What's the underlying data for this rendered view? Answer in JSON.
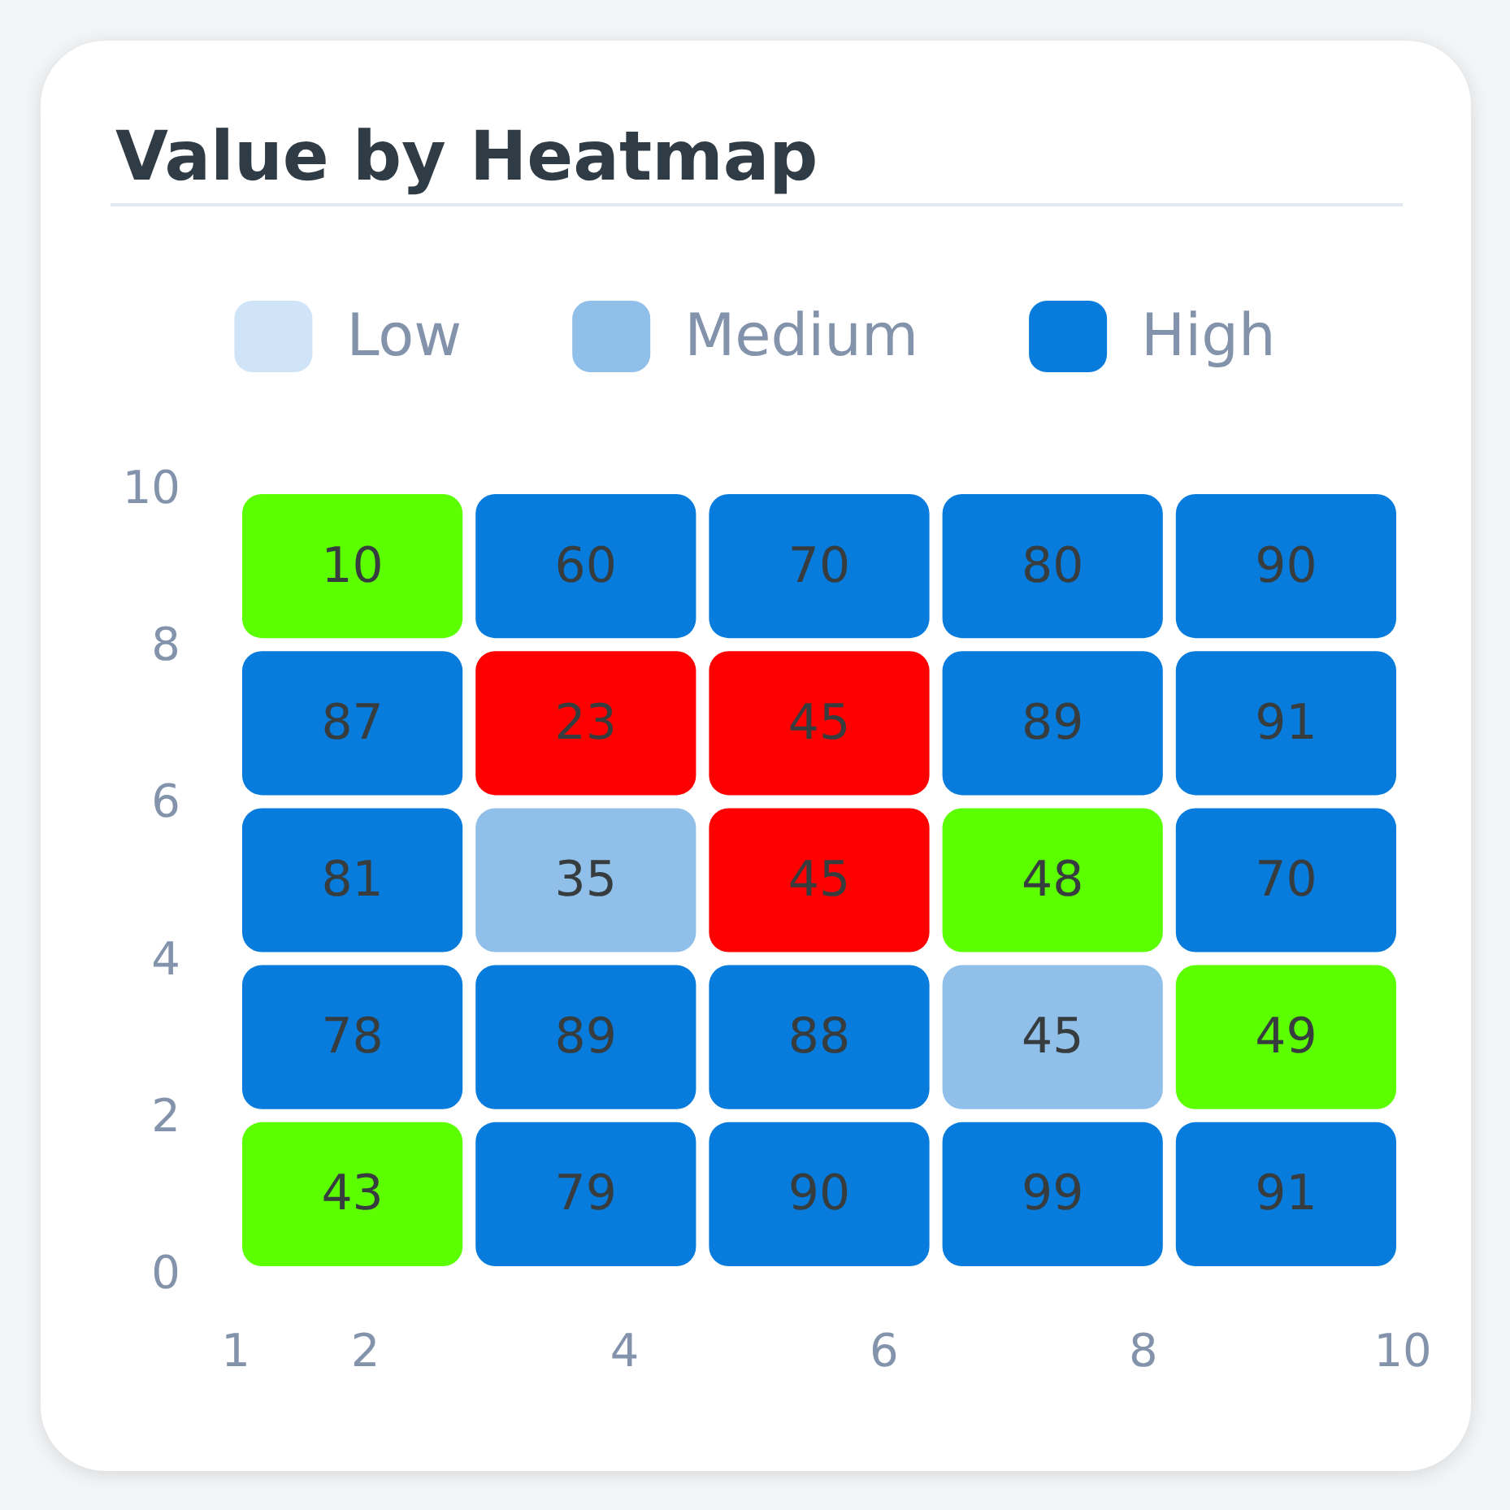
{
  "chart_data": {
    "type": "heatmap",
    "title": "Value by Heatmap",
    "xlim": [
      1,
      10
    ],
    "xticks": [
      1,
      2,
      4,
      6,
      8,
      10
    ],
    "ylim": [
      0,
      10
    ],
    "yticks": [
      0,
      2,
      4,
      6,
      8,
      10
    ],
    "cells": [
      [
        10,
        60,
        70,
        80,
        90
      ],
      [
        87,
        23,
        45,
        89,
        91
      ],
      [
        81,
        35,
        45,
        48,
        70
      ],
      [
        78,
        89,
        88,
        45,
        49
      ],
      [
        43,
        79,
        90,
        99,
        91
      ]
    ],
    "colors": [
      [
        "#5cff00",
        "#077cdc",
        "#077cdc",
        "#077cdc",
        "#077cdc"
      ],
      [
        "#077cdc",
        "#ff0000",
        "#ff0000",
        "#077cdc",
        "#077cdc"
      ],
      [
        "#077cdc",
        "#90c0ea",
        "#ff0000",
        "#5cff00",
        "#077cdc"
      ],
      [
        "#077cdc",
        "#077cdc",
        "#077cdc",
        "#90c0ea",
        "#5cff00"
      ],
      [
        "#5cff00",
        "#077cdc",
        "#077cdc",
        "#077cdc",
        "#077cdc"
      ]
    ],
    "series": [
      {
        "name": "Low",
        "color": "#cfe4f7"
      },
      {
        "name": "Medium",
        "color": "#90c0ea"
      },
      {
        "name": "High",
        "color": "#077cdc"
      }
    ],
    "data_labels": true,
    "legend": "top",
    "grid": false
  }
}
